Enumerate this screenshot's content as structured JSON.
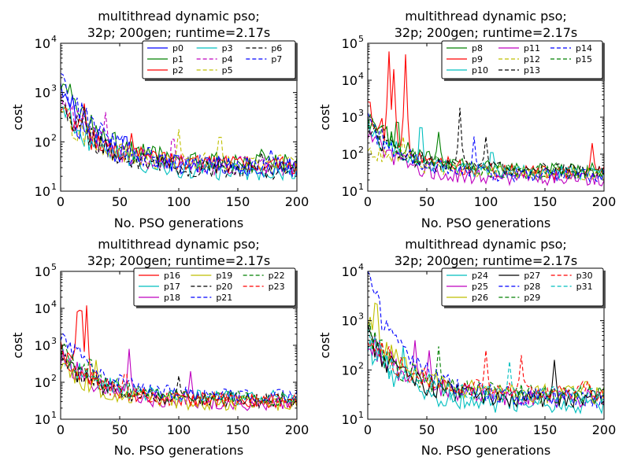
{
  "chart_data": [
    {
      "type": "line",
      "title": [
        "multithread dynamic pso;",
        "32p; 200gen; runtime=2.17s"
      ],
      "xlabel": "No. PSO generations",
      "ylabel": "cost",
      "xlim": [
        0,
        200
      ],
      "ylim": [
        10,
        10000
      ],
      "yscale": "log",
      "xticks": [
        "0",
        "50",
        "100",
        "150",
        "200"
      ],
      "yticks": [
        {
          "base": "10",
          "exp": "1"
        },
        {
          "base": "10",
          "exp": "2"
        },
        {
          "base": "10",
          "exp": "3"
        },
        {
          "base": "10",
          "exp": "4"
        }
      ],
      "legend_position": "upper-right",
      "series": [
        {
          "name": "p0",
          "color": "#0000ff",
          "dash": false,
          "start": 700,
          "end": 28,
          "bursts": [
            [
              10,
              900
            ],
            [
              55,
              200
            ]
          ]
        },
        {
          "name": "p1",
          "color": "#008000",
          "dash": false,
          "start": 1500,
          "end": 35,
          "bursts": [
            [
              8,
              1500
            ],
            [
              170,
              70
            ]
          ]
        },
        {
          "name": "p2",
          "color": "#ff0000",
          "dash": false,
          "start": 500,
          "end": 32,
          "bursts": [
            [
              20,
              600
            ],
            [
              60,
              150
            ]
          ]
        },
        {
          "name": "p3",
          "color": "#00bfbf",
          "dash": false,
          "start": 500,
          "end": 24,
          "bursts": [
            [
              5,
              300
            ]
          ]
        },
        {
          "name": "p4",
          "color": "#bf00bf",
          "dash": true,
          "start": 700,
          "end": 30,
          "bursts": [
            [
              38,
              400
            ],
            [
              95,
              200
            ]
          ]
        },
        {
          "name": "p5",
          "color": "#bfbf00",
          "dash": true,
          "start": 400,
          "end": 34,
          "bursts": [
            [
              100,
              180
            ],
            [
              135,
              230
            ]
          ]
        },
        {
          "name": "p6",
          "color": "#000000",
          "dash": true,
          "start": 600,
          "end": 26,
          "bursts": [
            [
              20,
              500
            ],
            [
              170,
              60
            ]
          ]
        },
        {
          "name": "p7",
          "color": "#0000ff",
          "dash": true,
          "start": 2300,
          "end": 30,
          "bursts": [
            [
              2,
              2300
            ],
            [
              178,
              70
            ]
          ]
        }
      ]
    },
    {
      "type": "line",
      "title": [
        "multithread dynamic pso;",
        "32p; 200gen; runtime=2.17s"
      ],
      "xlabel": "No. PSO generations",
      "ylabel": "cost",
      "xlim": [
        0,
        200
      ],
      "ylim": [
        10,
        100000
      ],
      "yscale": "log",
      "xticks": [
        "0",
        "50",
        "100",
        "150",
        "200"
      ],
      "yticks": [
        {
          "base": "10",
          "exp": "1"
        },
        {
          "base": "10",
          "exp": "2"
        },
        {
          "base": "10",
          "exp": "3"
        },
        {
          "base": "10",
          "exp": "4"
        },
        {
          "base": "10",
          "exp": "5"
        }
      ],
      "legend_position": "upper-right",
      "series": [
        {
          "name": "p8",
          "color": "#008000",
          "dash": false,
          "start": 1000,
          "end": 35,
          "bursts": [
            [
              25,
              1500
            ],
            [
              60,
              400
            ]
          ]
        },
        {
          "name": "p9",
          "color": "#ff0000",
          "dash": false,
          "start": 1500,
          "end": 30,
          "bursts": [
            [
              18,
              60000
            ],
            [
              22,
              20000
            ],
            [
              32,
              50000
            ],
            [
              190,
              200
            ]
          ]
        },
        {
          "name": "p10",
          "color": "#00bfbf",
          "dash": false,
          "start": 500,
          "end": 30,
          "bursts": [
            [
              45,
              1500
            ],
            [
              105,
              200
            ]
          ]
        },
        {
          "name": "p11",
          "color": "#bf00bf",
          "dash": false,
          "start": 300,
          "end": 20,
          "bursts": [
            [
              10,
              300
            ]
          ]
        },
        {
          "name": "p12",
          "color": "#bfbf00",
          "dash": true,
          "start": 150,
          "end": 30,
          "bursts": [
            [
              30,
              300
            ]
          ]
        },
        {
          "name": "p13",
          "color": "#000000",
          "dash": true,
          "start": 400,
          "end": 35,
          "bursts": [
            [
              78,
              1800
            ],
            [
              100,
              300
            ]
          ]
        },
        {
          "name": "p14",
          "color": "#0000ff",
          "dash": true,
          "start": 600,
          "end": 25,
          "bursts": [
            [
              5,
              800
            ],
            [
              90,
              300
            ]
          ]
        },
        {
          "name": "p15",
          "color": "#008000",
          "dash": true,
          "start": 800,
          "end": 30,
          "bursts": [
            [
              15,
              900
            ],
            [
              160,
              60
            ]
          ]
        }
      ]
    },
    {
      "type": "line",
      "title": [
        "multithread dynamic pso;",
        "32p; 200gen; runtime=2.17s"
      ],
      "xlabel": "No. PSO generations",
      "ylabel": "cost",
      "xlim": [
        0,
        200
      ],
      "ylim": [
        10,
        100000
      ],
      "yscale": "log",
      "xticks": [
        "0",
        "50",
        "100",
        "150",
        "200"
      ],
      "yticks": [
        {
          "base": "10",
          "exp": "1"
        },
        {
          "base": "10",
          "exp": "2"
        },
        {
          "base": "10",
          "exp": "3"
        },
        {
          "base": "10",
          "exp": "4"
        },
        {
          "base": "10",
          "exp": "5"
        }
      ],
      "legend_position": "upper-right",
      "series": [
        {
          "name": "p16",
          "color": "#ff0000",
          "dash": false,
          "start": 600,
          "end": 30,
          "bursts": [
            [
              17,
              60000
            ],
            [
              14,
              8000
            ],
            [
              22,
              12000
            ]
          ]
        },
        {
          "name": "p17",
          "color": "#00bfbf",
          "dash": false,
          "start": 500,
          "end": 35,
          "bursts": [
            [
              180,
              60
            ]
          ]
        },
        {
          "name": "p18",
          "color": "#bf00bf",
          "dash": false,
          "start": 500,
          "end": 25,
          "bursts": [
            [
              58,
              800
            ],
            [
              110,
              200
            ]
          ]
        },
        {
          "name": "p19",
          "color": "#bfbf00",
          "dash": false,
          "start": 300,
          "end": 25,
          "bursts": [
            [
              30,
              400
            ]
          ]
        },
        {
          "name": "p20",
          "color": "#000000",
          "dash": true,
          "start": 400,
          "end": 30,
          "bursts": [
            [
              100,
              150
            ]
          ]
        },
        {
          "name": "p21",
          "color": "#0000ff",
          "dash": true,
          "start": 2000,
          "end": 40,
          "bursts": [
            [
              3,
              2000
            ],
            [
              185,
              80
            ]
          ]
        },
        {
          "name": "p22",
          "color": "#008000",
          "dash": true,
          "start": 700,
          "end": 35,
          "bursts": [
            [
              25,
              700
            ],
            [
              150,
              60
            ]
          ]
        },
        {
          "name": "p23",
          "color": "#ff0000",
          "dash": true,
          "start": 500,
          "end": 30,
          "bursts": [
            [
              55,
              300
            ]
          ]
        }
      ]
    },
    {
      "type": "line",
      "title": [
        "multithread dynamic pso;",
        "32p; 200gen; runtime=2.17s"
      ],
      "xlabel": "No. PSO generations",
      "ylabel": "cost",
      "xlim": [
        0,
        200
      ],
      "ylim": [
        10,
        10000
      ],
      "yscale": "log",
      "xticks": [
        "0",
        "50",
        "100",
        "150",
        "200"
      ],
      "yticks": [
        {
          "base": "10",
          "exp": "1"
        },
        {
          "base": "10",
          "exp": "2"
        },
        {
          "base": "10",
          "exp": "3"
        },
        {
          "base": "10",
          "exp": "4"
        }
      ],
      "legend_position": "upper-right",
      "series": [
        {
          "name": "p24",
          "color": "#00bfbf",
          "dash": false,
          "start": 300,
          "end": 18,
          "bursts": [
            [
              30,
              300
            ]
          ]
        },
        {
          "name": "p25",
          "color": "#bf00bf",
          "dash": false,
          "start": 500,
          "end": 25,
          "bursts": [
            [
              40,
              400
            ],
            [
              52,
              250
            ]
          ]
        },
        {
          "name": "p26",
          "color": "#bfbf00",
          "dash": false,
          "start": 800,
          "end": 30,
          "bursts": [
            [
              7,
              5000
            ],
            [
              185,
              80
            ]
          ]
        },
        {
          "name": "p27",
          "color": "#000000",
          "dash": false,
          "start": 400,
          "end": 25,
          "bursts": [
            [
              158,
              160
            ]
          ]
        },
        {
          "name": "p28",
          "color": "#0000ff",
          "dash": true,
          "start": 6000,
          "end": 25,
          "bursts": [
            [
              1,
              6000
            ],
            [
              20,
              700
            ]
          ]
        },
        {
          "name": "p29",
          "color": "#008000",
          "dash": true,
          "start": 500,
          "end": 30,
          "bursts": [
            [
              60,
              300
            ]
          ]
        },
        {
          "name": "p30",
          "color": "#ff0000",
          "dash": true,
          "start": 500,
          "end": 35,
          "bursts": [
            [
              100,
              250
            ],
            [
              130,
              200
            ]
          ]
        },
        {
          "name": "p31",
          "color": "#00bfbf",
          "dash": true,
          "start": 400,
          "end": 28,
          "bursts": [
            [
              120,
              150
            ]
          ]
        }
      ]
    }
  ]
}
